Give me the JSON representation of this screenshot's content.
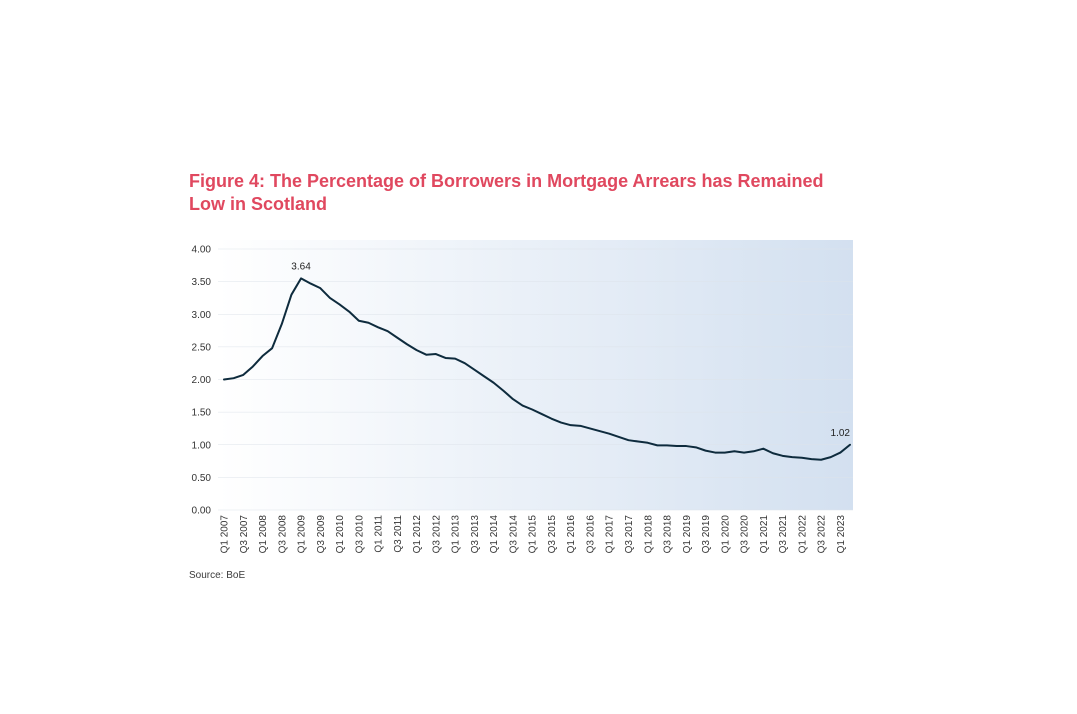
{
  "title": "Figure 4: The Percentage of Borrowers in Mortgage Arrears has Remained Low in Scotland",
  "source": "Source: BoE",
  "chart_data": {
    "type": "line",
    "title": "Figure 4: The Percentage of Borrowers in Mortgage Arrears has Remained Low in Scotland",
    "xlabel": "",
    "ylabel": "",
    "ylim": [
      0,
      4
    ],
    "yticks": [
      "0.00",
      "0.50",
      "1.00",
      "1.50",
      "2.00",
      "2.50",
      "3.00",
      "3.50",
      "4.00"
    ],
    "xtick_labels": [
      "Q1 2007",
      "Q3 2007",
      "Q1 2008",
      "Q3 2008",
      "Q1 2009",
      "Q3 2009",
      "Q1 2010",
      "Q3 2010",
      "Q1 2011",
      "Q3 2011",
      "Q1 2012",
      "Q3 2012",
      "Q1 2013",
      "Q3 2013",
      "Q1 2014",
      "Q3 2014",
      "Q1 2015",
      "Q3 2015",
      "Q1 2016",
      "Q3 2016",
      "Q1 2017",
      "Q3 2017",
      "Q1 2018",
      "Q3 2018",
      "Q1 2019",
      "Q3 2019",
      "Q1 2020",
      "Q3 2020",
      "Q1 2021",
      "Q3 2021",
      "Q1 2022",
      "Q3 2022",
      "Q1 2023"
    ],
    "grid": true,
    "line_color": "#0e2b3d",
    "background_gradient": [
      "#ffffff",
      "#d3e0f0"
    ],
    "series": [
      {
        "values": [
          2.0,
          2.02,
          2.07,
          2.2,
          2.36,
          2.48,
          2.85,
          3.3,
          3.55,
          3.47,
          3.4,
          3.25,
          3.15,
          3.04,
          2.9,
          2.87,
          2.8,
          2.74,
          2.64,
          2.54,
          2.45,
          2.38,
          2.39,
          2.33,
          2.32,
          2.25,
          2.15,
          2.05,
          1.95,
          1.83,
          1.7,
          1.6,
          1.54,
          1.47,
          1.4,
          1.34,
          1.3,
          1.29,
          1.25,
          1.21,
          1.17,
          1.12,
          1.07,
          1.05,
          1.03,
          0.99,
          0.99,
          0.98,
          0.98,
          0.96,
          0.91,
          0.88,
          0.88,
          0.9,
          0.88,
          0.9,
          0.94,
          0.87,
          0.83,
          0.81,
          0.8,
          0.78,
          0.77,
          0.81,
          0.88,
          1.0
        ]
      }
    ],
    "annotations": [
      {
        "index": 8,
        "value": 3.55,
        "label": "3.64"
      },
      {
        "index": 65,
        "value": 1.0,
        "label": "1.02"
      }
    ]
  }
}
